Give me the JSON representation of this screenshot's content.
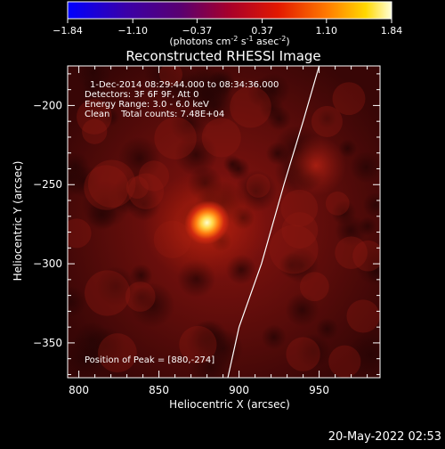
{
  "chart_data": {
    "type": "heatmap",
    "title": "Reconstructed RHESSI Image",
    "xlabel": "Heliocentric X (arcsec)",
    "ylabel": "Heliocentric Y (arcsec)",
    "xlim": [
      793,
      988
    ],
    "ylim": [
      -372,
      -175
    ],
    "xticks": [
      800,
      850,
      900,
      950
    ],
    "yticks": [
      -200,
      -250,
      -300,
      -350
    ],
    "colorbar": {
      "label_parts": [
        "(photons cm",
        "-2",
        " s",
        "-1",
        " asec",
        "-2",
        ")"
      ],
      "range": [
        -1.84,
        1.84
      ],
      "ticks": [
        "-1.84",
        "-1.10",
        "-0.37",
        "0.37",
        "1.10",
        "1.84"
      ]
    },
    "info_lines": [
      "1-Dec-2014 08:29:44.000 to 08:34:36.000",
      "Detectors: 3F 6F 9F, Att 0",
      "Energy Range: 3.0 - 6.0 keV",
      "Clean    Total counts: 7.48E+04"
    ],
    "peak_label": "Position of Peak = [880,-274]",
    "peak": {
      "x": 880,
      "y": -274,
      "value": 1.84
    },
    "secondary_source": {
      "x": 948,
      "y": -238,
      "value": 0.7
    },
    "limb_points": [
      [
        950,
        -175
      ],
      [
        940,
        -210
      ],
      [
        928,
        -250
      ],
      [
        914,
        -300
      ],
      [
        900,
        -340
      ],
      [
        893,
        -372
      ]
    ],
    "timestamp": "20-May-2022 02:53"
  }
}
